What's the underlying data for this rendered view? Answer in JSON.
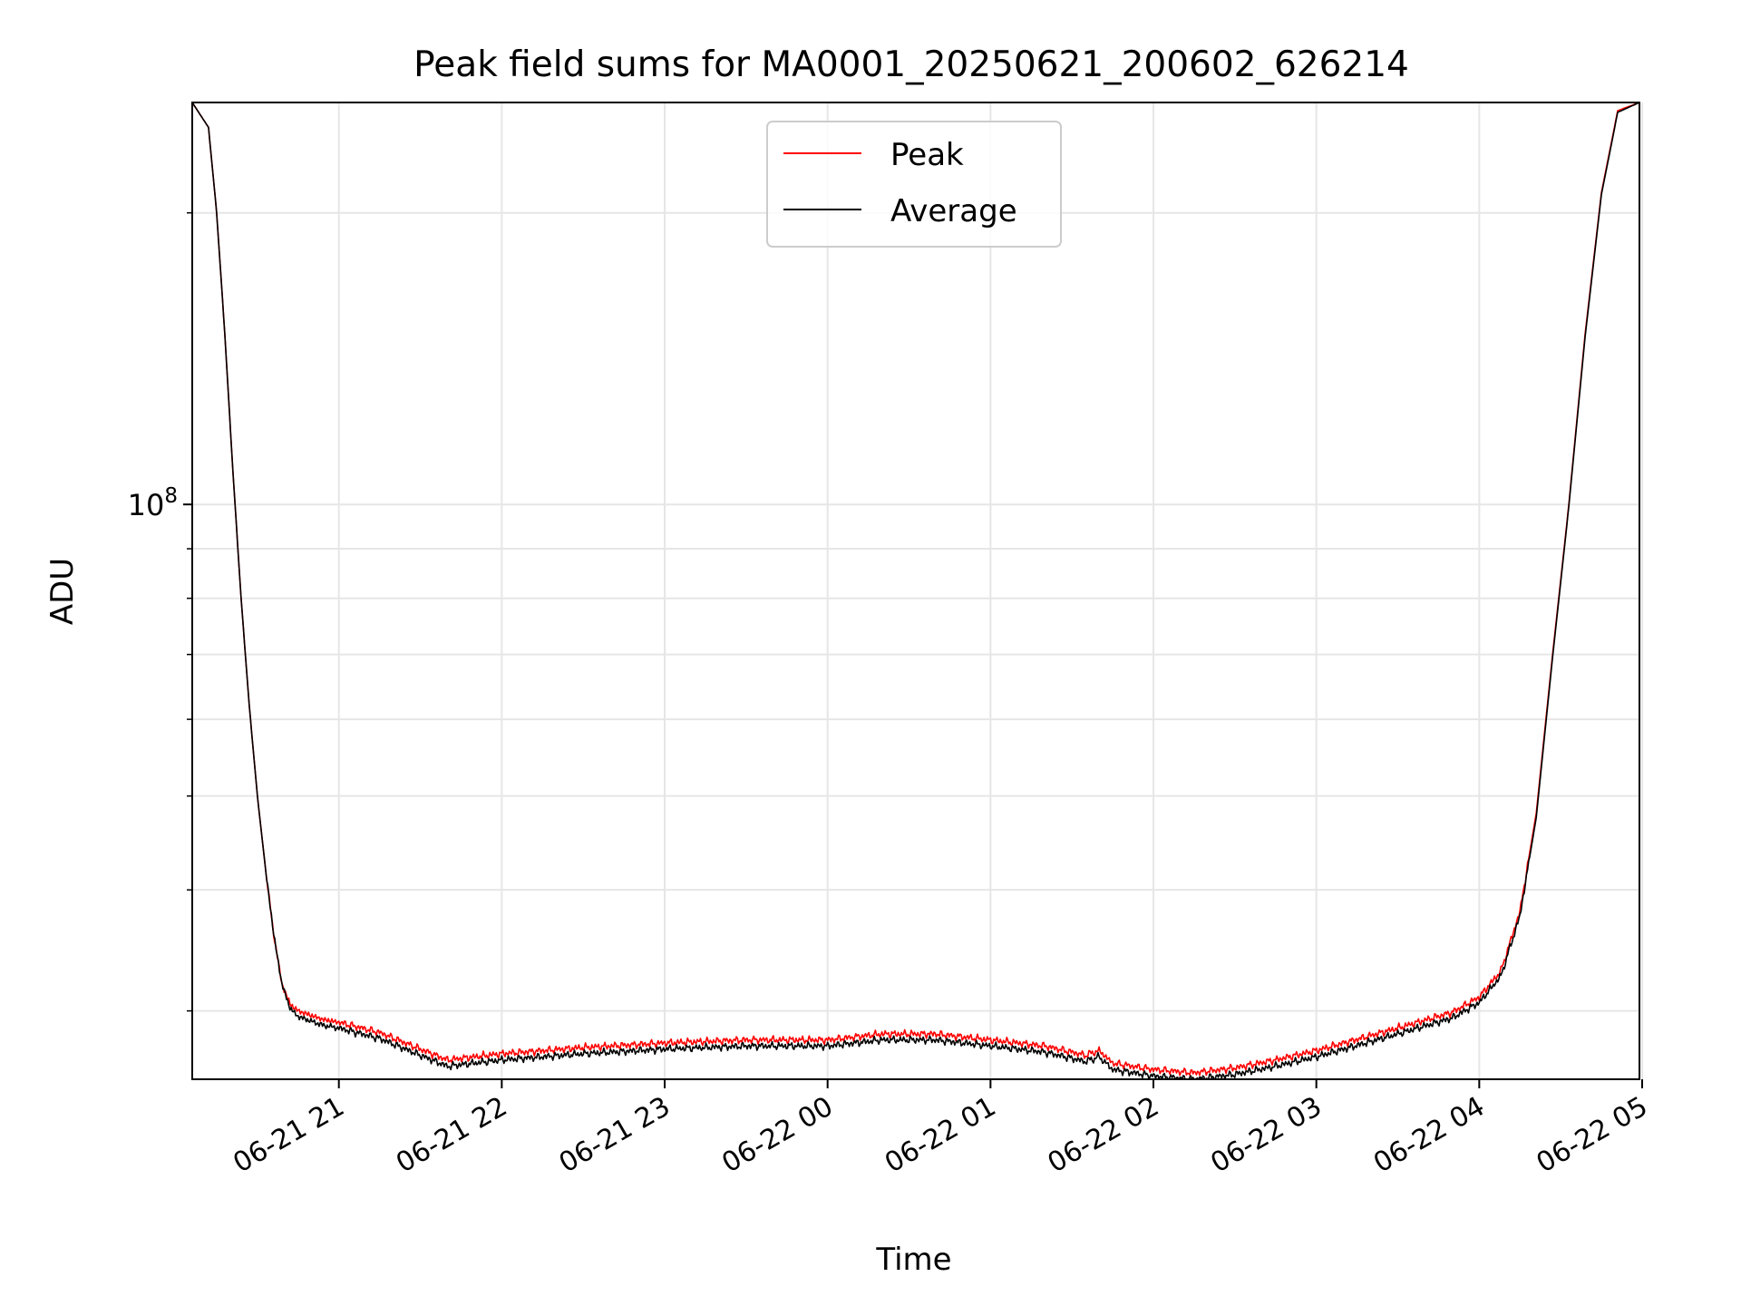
{
  "chart_data": {
    "type": "line",
    "title": "Peak field sums for MA0001_20250621_200602_626214",
    "xlabel": "Time",
    "ylabel": "ADU",
    "y_scale": "log",
    "ylim": [
      25500000,
      260000000
    ],
    "xlim": [
      "2025-06-21 20:06",
      "2025-06-22 04:59"
    ],
    "grid": true,
    "legend_position": "top-center",
    "x_tick_labels": [
      "06-21 21",
      "06-21 22",
      "06-21 23",
      "06-22 00",
      "06-22 01",
      "06-22 02",
      "06-22 03",
      "06-22 04",
      "06-22 05"
    ],
    "x_ticks": [
      "2025-06-21 21:00",
      "2025-06-21 22:00",
      "2025-06-21 23:00",
      "2025-06-22 00:00",
      "2025-06-22 01:00",
      "2025-06-22 02:00",
      "2025-06-22 03:00",
      "2025-06-22 04:00",
      "2025-06-22 05:00"
    ],
    "y_tick_labels": [
      {
        "base": "10",
        "exp": "8",
        "value": 100000000
      }
    ],
    "y_minor_ticks": [
      30000000,
      40000000,
      50000000,
      60000000,
      70000000,
      80000000,
      90000000,
      200000000
    ],
    "series": [
      {
        "name": "Peak",
        "color": "#ff0000",
        "x": [
          "2025-06-21 20:06",
          "2025-06-21 20:12",
          "2025-06-21 20:15",
          "2025-06-21 20:18",
          "2025-06-21 20:21",
          "2025-06-21 20:24",
          "2025-06-21 20:27",
          "2025-06-21 20:30",
          "2025-06-21 20:33",
          "2025-06-21 20:36",
          "2025-06-21 20:39",
          "2025-06-21 20:42",
          "2025-06-21 20:45",
          "2025-06-21 20:48",
          "2025-06-21 20:51",
          "2025-06-21 20:54",
          "2025-06-21 20:57",
          "2025-06-21 21:00",
          "2025-06-21 21:15",
          "2025-06-21 21:30",
          "2025-06-21 21:40",
          "2025-06-21 22:00",
          "2025-06-21 22:30",
          "2025-06-21 23:00",
          "2025-06-21 23:30",
          "2025-06-22 00:00",
          "2025-06-22 00:20",
          "2025-06-22 00:40",
          "2025-06-22 01:00",
          "2025-06-22 01:20",
          "2025-06-22 01:35",
          "2025-06-22 01:40",
          "2025-06-22 01:45",
          "2025-06-22 02:00",
          "2025-06-22 02:15",
          "2025-06-22 02:30",
          "2025-06-22 02:45",
          "2025-06-22 03:00",
          "2025-06-22 03:30",
          "2025-06-22 03:50",
          "2025-06-22 04:00",
          "2025-06-22 04:08",
          "2025-06-22 04:15",
          "2025-06-22 04:21",
          "2025-06-22 04:27",
          "2025-06-22 04:33",
          "2025-06-22 04:39",
          "2025-06-22 04:45",
          "2025-06-22 04:51",
          "2025-06-22 04:59"
        ],
        "y": [
          260000000,
          245000000,
          200000000,
          150000000,
          108000000,
          80000000,
          62000000,
          50000000,
          42000000,
          36000000,
          32000000,
          30500000,
          30000000,
          29800000,
          29600000,
          29400000,
          29300000,
          29200000,
          28500000,
          27400000,
          26700000,
          27100000,
          27500000,
          27800000,
          28000000,
          28000000,
          28400000,
          28400000,
          28000000,
          27600000,
          27000000,
          27300000,
          26500000,
          26100000,
          25900000,
          26200000,
          26700000,
          27300000,
          28800000,
          29900000,
          31000000,
          33000000,
          38000000,
          48000000,
          70000000,
          100000000,
          150000000,
          210000000,
          255000000,
          260000000
        ]
      },
      {
        "name": "Average",
        "color": "#000000",
        "x": [
          "2025-06-21 20:06",
          "2025-06-21 20:12",
          "2025-06-21 20:15",
          "2025-06-21 20:18",
          "2025-06-21 20:21",
          "2025-06-21 20:24",
          "2025-06-21 20:27",
          "2025-06-21 20:30",
          "2025-06-21 20:33",
          "2025-06-21 20:36",
          "2025-06-21 20:39",
          "2025-06-21 20:42",
          "2025-06-21 20:45",
          "2025-06-21 20:48",
          "2025-06-21 20:51",
          "2025-06-21 20:54",
          "2025-06-21 20:57",
          "2025-06-21 21:00",
          "2025-06-21 21:15",
          "2025-06-21 21:30",
          "2025-06-21 21:40",
          "2025-06-21 22:00",
          "2025-06-21 22:30",
          "2025-06-21 23:00",
          "2025-06-21 23:30",
          "2025-06-22 00:00",
          "2025-06-22 00:20",
          "2025-06-22 00:40",
          "2025-06-22 01:00",
          "2025-06-22 01:20",
          "2025-06-22 01:35",
          "2025-06-22 01:40",
          "2025-06-22 01:45",
          "2025-06-22 02:00",
          "2025-06-22 02:15",
          "2025-06-22 02:30",
          "2025-06-22 02:45",
          "2025-06-22 03:00",
          "2025-06-22 03:30",
          "2025-06-22 03:50",
          "2025-06-22 04:00",
          "2025-06-22 04:08",
          "2025-06-22 04:15",
          "2025-06-22 04:21",
          "2025-06-22 04:27",
          "2025-06-22 04:33",
          "2025-06-22 04:39",
          "2025-06-22 04:45",
          "2025-06-22 04:51",
          "2025-06-22 04:59"
        ],
        "y": [
          260000000,
          245000000,
          200000000,
          150000000,
          108000000,
          80000000,
          62000000,
          50000000,
          42000000,
          36000000,
          32000000,
          30200000,
          29600000,
          29400000,
          29200000,
          29000000,
          28900000,
          28800000,
          28100000,
          27000000,
          26300000,
          26700000,
          27100000,
          27400000,
          27600000,
          27600000,
          28000000,
          28000000,
          27600000,
          27200000,
          26600000,
          26900000,
          26100000,
          25700000,
          25500000,
          25800000,
          26300000,
          26900000,
          28400000,
          29500000,
          30600000,
          32600000,
          37600000,
          47500000,
          69500000,
          99500000,
          149000000,
          209000000,
          254000000,
          260000000
        ]
      }
    ]
  }
}
